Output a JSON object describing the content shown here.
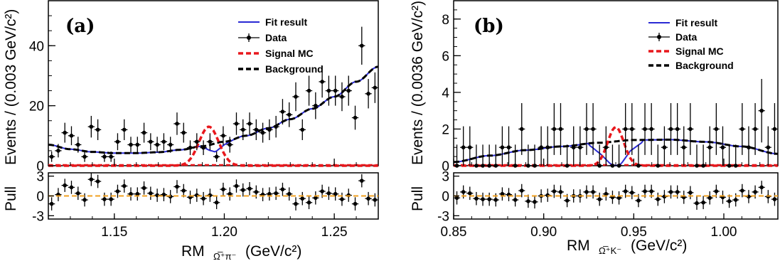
{
  "colors": {
    "fit": "#2a2ad4",
    "signal": "#e8171c",
    "background": "#000000",
    "pull_line": "#f0a020",
    "data": "#000000"
  },
  "chart_data": [
    {
      "type": "line",
      "panel_label": "(a)",
      "ylabel": "Events / (0.003 GeV/c²)",
      "xlabel": "RM",
      "xlabel_sub": "Ω̅⁺π⁻",
      "xlabel_unit": "(GeV/c²)",
      "pull_label": "Pull",
      "xlim": [
        1.12,
        1.27
      ],
      "ylim": [
        0,
        55
      ],
      "pull_ylim": [
        -3.5,
        3.5
      ],
      "xticks": [
        "1.15",
        "1.20",
        "1.25"
      ],
      "xtick_values": [
        1.15,
        1.2,
        1.25
      ],
      "yticks": [
        "0",
        "20",
        "40"
      ],
      "ytick_values": [
        0,
        20,
        40
      ],
      "pull_ticks": [
        "3",
        "0",
        "-3"
      ],
      "pull_tick_values": [
        3,
        0,
        -3
      ],
      "legend": {
        "position": "top-right",
        "entries": [
          "Fit result",
          "Data",
          "Signal MC",
          "Background"
        ]
      },
      "background_curve": {
        "x": [
          1.12,
          1.13,
          1.14,
          1.15,
          1.16,
          1.17,
          1.18,
          1.19,
          1.2,
          1.21,
          1.22,
          1.23,
          1.24,
          1.25,
          1.26,
          1.27
        ],
        "y": [
          7.0,
          5.5,
          4.6,
          4.2,
          4.2,
          4.5,
          5.3,
          6.5,
          8.0,
          10.0,
          12.5,
          15.5,
          19.0,
          23.0,
          28.0,
          33.0
        ]
      },
      "signal": {
        "mean": 1.193,
        "sigma": 0.0045,
        "peak": 13
      },
      "dip": {
        "x": [
          1.19,
          1.193,
          1.196,
          1.2,
          1.205
        ],
        "y": [
          6.4,
          5.2,
          4.6,
          7.0,
          9.0
        ]
      },
      "data": {
        "x": [
          1.1215,
          1.1245,
          1.1275,
          1.1305,
          1.1335,
          1.1365,
          1.1395,
          1.1425,
          1.1455,
          1.1485,
          1.1515,
          1.1545,
          1.1575,
          1.1605,
          1.1635,
          1.1665,
          1.1695,
          1.1725,
          1.1755,
          1.1785,
          1.1815,
          1.1845,
          1.1875,
          1.1905,
          1.1935,
          1.1965,
          1.1995,
          1.2025,
          1.2055,
          1.2085,
          1.2115,
          1.2145,
          1.2175,
          1.2205,
          1.2235,
          1.2265,
          1.2295,
          1.2325,
          1.2355,
          1.2385,
          1.2415,
          1.2445,
          1.2475,
          1.2505,
          1.2535,
          1.2565,
          1.2595,
          1.2625,
          1.2655,
          1.2685
        ],
        "y": [
          3,
          5,
          11,
          10,
          7,
          3,
          13,
          12,
          3,
          3,
          8,
          12,
          7,
          7,
          11,
          8,
          7,
          8,
          7,
          14,
          11,
          6,
          8,
          6,
          8,
          3,
          10,
          7,
          14,
          12,
          14,
          12,
          11,
          12,
          13,
          18,
          17,
          23,
          12,
          25,
          20,
          28,
          25,
          25,
          23,
          25,
          16,
          40,
          24,
          26
        ],
        "pull": [
          -1.2,
          0.2,
          1.6,
          1.3,
          0.4,
          -0.6,
          2.5,
          2.2,
          -0.5,
          -0.5,
          0.7,
          1.5,
          0.3,
          0.3,
          1.2,
          0.4,
          0.1,
          0.2,
          -0.1,
          1.4,
          0.8,
          -0.2,
          0.1,
          -0.4,
          0.1,
          -1.0,
          1.0,
          0.3,
          1.5,
          0.9,
          1.1,
          0.6,
          0.2,
          0.3,
          0.4,
          1.0,
          0.3,
          -1.2,
          -0.4,
          -1.0,
          -0.3,
          0.7,
          0.4,
          0.3,
          -0.5,
          0.1,
          -1.2,
          2.3,
          -0.4,
          -0.6
        ]
      }
    },
    {
      "type": "line",
      "panel_label": "(b)",
      "ylabel": "Events / (0.0036 GeV/c²)",
      "xlabel": "RM",
      "xlabel_sub": "Ω̅⁺K⁻",
      "xlabel_unit": "(GeV/c²)",
      "pull_label": "Pull",
      "xlim": [
        0.85,
        1.03
      ],
      "ylim": [
        0,
        9
      ],
      "pull_ylim": [
        -3.5,
        3.5
      ],
      "xticks": [
        "0.85",
        "0.90",
        "0.95",
        "1.00"
      ],
      "xtick_values": [
        0.85,
        0.9,
        0.95,
        1.0
      ],
      "yticks": [
        "0",
        "2",
        "4",
        "6",
        "8"
      ],
      "ytick_values": [
        0,
        2,
        4,
        6,
        8
      ],
      "pull_ticks": [
        "3",
        "0",
        "-3"
      ],
      "pull_tick_values": [
        3,
        0,
        -3
      ],
      "legend": {
        "position": "top-right",
        "entries": [
          "Fit result",
          "Data",
          "Signal MC",
          "Background"
        ]
      },
      "background_curve": {
        "x": [
          0.85,
          0.87,
          0.89,
          0.91,
          0.93,
          0.95,
          0.97,
          0.99,
          1.01,
          1.03
        ],
        "y": [
          0.2,
          0.55,
          0.85,
          1.05,
          1.25,
          1.4,
          1.42,
          1.3,
          1.05,
          0.65
        ]
      },
      "signal": {
        "mean": 0.94,
        "sigma": 0.0045,
        "peak": 2.1
      },
      "dip": {
        "x": [
          0.925,
          0.932,
          0.937,
          0.94,
          0.943,
          0.948,
          0.955
        ],
        "y": [
          1.15,
          0.6,
          0.1,
          0.0,
          0.1,
          0.8,
          1.3
        ]
      },
      "data": {
        "x": [
          0.8518,
          0.8554,
          0.859,
          0.8626,
          0.8662,
          0.8698,
          0.8734,
          0.877,
          0.8806,
          0.8842,
          0.8878,
          0.8914,
          0.895,
          0.8986,
          0.9022,
          0.9058,
          0.9094,
          0.913,
          0.9166,
          0.9202,
          0.9238,
          0.9274,
          0.931,
          0.9346,
          0.9382,
          0.9418,
          0.9454,
          0.949,
          0.9526,
          0.9562,
          0.9598,
          0.9634,
          0.967,
          0.9706,
          0.9742,
          0.9778,
          0.9814,
          0.985,
          0.9886,
          0.9922,
          0.9958,
          0.9994,
          1.003,
          1.0066,
          1.0102,
          1.0138,
          1.0174,
          1.021,
          1.0246,
          1.0282
        ],
        "y": [
          0,
          1,
          1,
          0,
          0,
          0,
          0,
          1,
          1,
          0,
          2,
          0,
          0,
          1,
          1,
          2,
          2,
          0,
          1,
          1,
          2,
          2,
          0,
          1,
          0,
          0,
          2,
          2,
          0,
          2,
          2,
          0,
          1,
          2,
          2,
          1,
          2,
          0,
          0,
          1,
          2,
          1,
          0,
          0,
          2,
          1,
          2,
          3,
          1,
          2
        ],
        "pull": [
          -0.3,
          0.6,
          0.4,
          -0.4,
          -0.5,
          -0.5,
          -0.6,
          0.3,
          0.2,
          -0.6,
          0.8,
          -0.8,
          -0.9,
          0.0,
          0.1,
          0.7,
          0.6,
          -0.7,
          0.0,
          0.0,
          0.6,
          0.6,
          -0.5,
          0.3,
          -0.2,
          -0.3,
          0.7,
          0.5,
          -0.7,
          0.7,
          0.7,
          -0.5,
          -0.1,
          0.6,
          0.6,
          -0.2,
          0.5,
          -1.1,
          -1.0,
          -0.3,
          0.7,
          -0.2,
          -0.8,
          -0.6,
          0.8,
          -0.1,
          0.6,
          1.3,
          -0.1,
          -0.5
        ]
      }
    }
  ]
}
